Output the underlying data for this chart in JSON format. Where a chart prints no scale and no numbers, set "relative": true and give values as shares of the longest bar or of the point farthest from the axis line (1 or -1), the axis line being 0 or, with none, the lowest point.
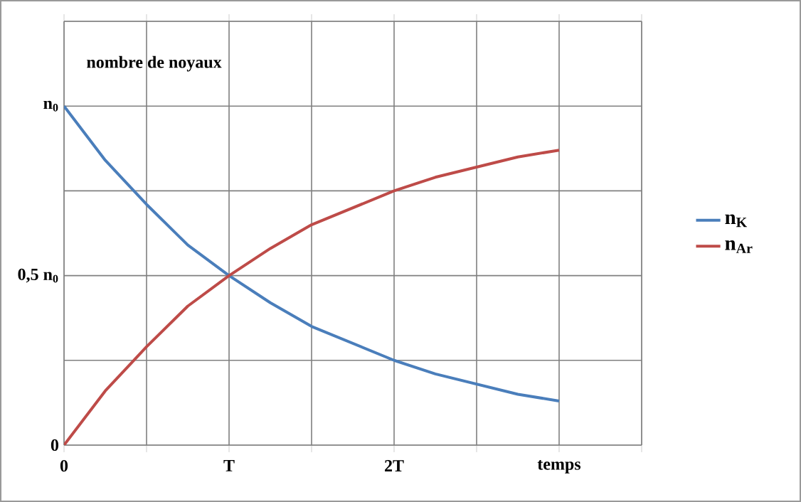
{
  "chart_data": {
    "type": "line",
    "ylabel": "nombre de noyaux",
    "x": [
      0,
      0.25,
      0.5,
      0.75,
      1,
      1.25,
      1.5,
      1.75,
      2,
      2.25,
      2.5,
      2.75,
      3
    ],
    "series": [
      {
        "name": "n$_{K}$",
        "color": "#4a7ebb",
        "values": [
          1,
          0.84,
          0.71,
          0.59,
          0.5,
          0.42,
          0.35,
          0.3,
          0.25,
          0.21,
          0.18,
          0.15,
          0.13
        ]
      },
      {
        "name": "n$_{Ar}$",
        "color": "#be4b48",
        "values": [
          0,
          0.16,
          0.29,
          0.41,
          0.5,
          0.58,
          0.65,
          0.7,
          0.75,
          0.79,
          0.82,
          0.85,
          0.87
        ]
      }
    ],
    "xlim": [
      0,
      3.5
    ],
    "relative": true,
    "annotations": [
      "0",
      "0,5 n$_{0}$",
      "n$_{0}$"
    ],
    "xticks": [
      0,
      {
        "value": 0.5,
        "label": null
      },
      {
        "value": 1,
        "label": "T"
      },
      {
        "value": 1.5,
        "label": null
      },
      {
        "value": 2,
        "label": "2T"
      },
      {
        "value": 2.5,
        "label": null
      },
      {
        "value": 3,
        "label": "temps"
      },
      {
        "value": 3.5,
        "label": null
      }
    ],
    "grid": true,
    "legend": "right",
    "marker": "none",
    "line_style": "solid"
  }
}
